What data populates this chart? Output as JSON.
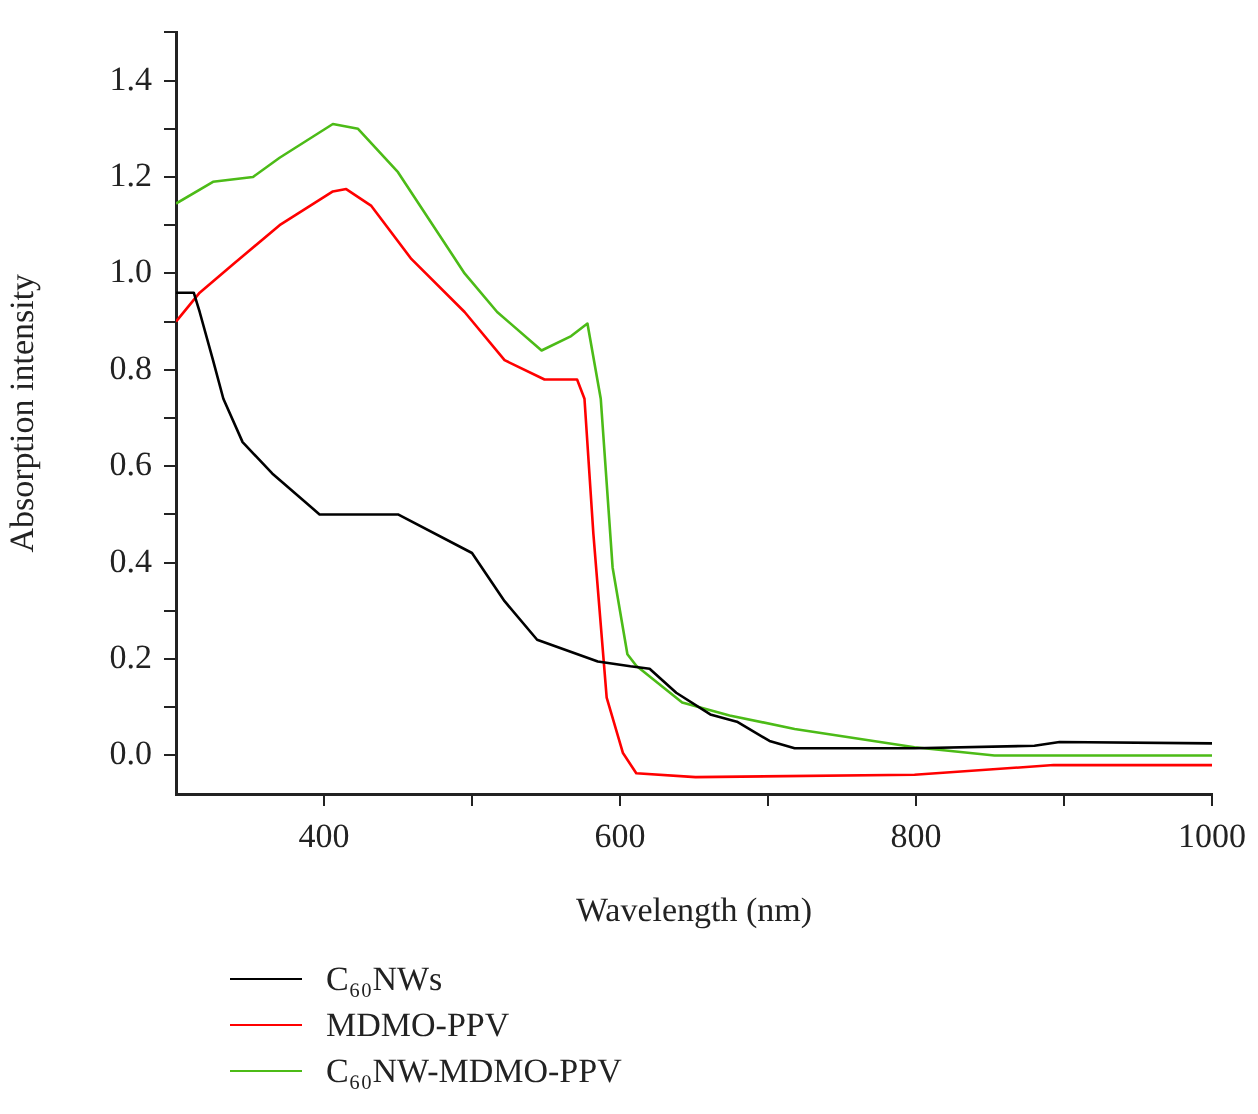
{
  "chart_data": {
    "type": "line",
    "xlabel": "Wavelength (nm)",
    "ylabel": "Absorption intensity",
    "xlim": [
      300,
      1000
    ],
    "xticks": [
      400,
      {
        "value": 500,
        "label": null
      },
      600,
      {
        "value": 700,
        "label": null
      },
      800,
      {
        "value": 900,
        "label": null
      },
      1000
    ],
    "ylim": [
      -0.08,
      1.5
    ],
    "yticks": [
      {
        "value": 0,
        "label": "0.0"
      },
      {
        "value": 0.1,
        "label": null
      },
      0.2,
      {
        "value": 0.3,
        "label": null
      },
      0.4,
      {
        "value": 0.5,
        "label": null
      },
      0.6,
      {
        "value": 0.7,
        "label": null
      },
      0.8,
      {
        "value": 0.9,
        "label": null
      },
      {
        "value": 1,
        "label": "1.0"
      },
      {
        "value": 1.1,
        "label": null
      },
      1.2,
      {
        "value": 1.3,
        "label": null
      },
      1.4,
      {
        "value": 1.5,
        "label": null
      }
    ],
    "grid": false,
    "legend": "bottom",
    "marker": "none",
    "line_style": "solid",
    "series": [
      {
        "name": "C₆₀NWs",
        "color": "#000000",
        "x": [
          300,
          312,
          316,
          325,
          332,
          345,
          365,
          397,
          450,
          500,
          522,
          544,
          585,
          607,
          620,
          638,
          661,
          679,
          701,
          718,
          799,
          880,
          897,
          1000
        ],
        "values": [
          0.96,
          0.96,
          0.92,
          0.82,
          0.74,
          0.65,
          0.585,
          0.5,
          0.5,
          0.42,
          0.32,
          0.24,
          0.195,
          0.185,
          0.18,
          0.13,
          0.085,
          0.07,
          0.03,
          0.015,
          0.015,
          0.02,
          0.028,
          0.025
        ]
      },
      {
        "name": "MDMO-PPV",
        "color": "#ff0000",
        "x": [
          300,
          316,
          339,
          370,
          406,
          415,
          432,
          459,
          495,
          522,
          549,
          571,
          576,
          582,
          591,
          602,
          611,
          651,
          799,
          893,
          1000
        ],
        "values": [
          0.9,
          0.96,
          1.02,
          1.1,
          1.17,
          1.175,
          1.14,
          1.03,
          0.92,
          0.82,
          0.78,
          0.78,
          0.74,
          0.46,
          0.12,
          0.005,
          -0.037,
          -0.045,
          -0.04,
          -0.02,
          -0.02
        ]
      },
      {
        "name": "C₆₀NW-MDMO-PPV",
        "color": "#4cbb17",
        "x": [
          300,
          325,
          352,
          370,
          406,
          423,
          450,
          495,
          517,
          547,
          567,
          578,
          587,
          595,
          605,
          611,
          642,
          674,
          718,
          799,
          853,
          1000
        ],
        "values": [
          1.145,
          1.19,
          1.2,
          1.24,
          1.31,
          1.3,
          1.21,
          1.0,
          0.92,
          0.84,
          0.87,
          0.896,
          0.74,
          0.39,
          0.21,
          0.186,
          0.11,
          0.083,
          0.055,
          0.017,
          0.0,
          0.0
        ]
      }
    ]
  }
}
